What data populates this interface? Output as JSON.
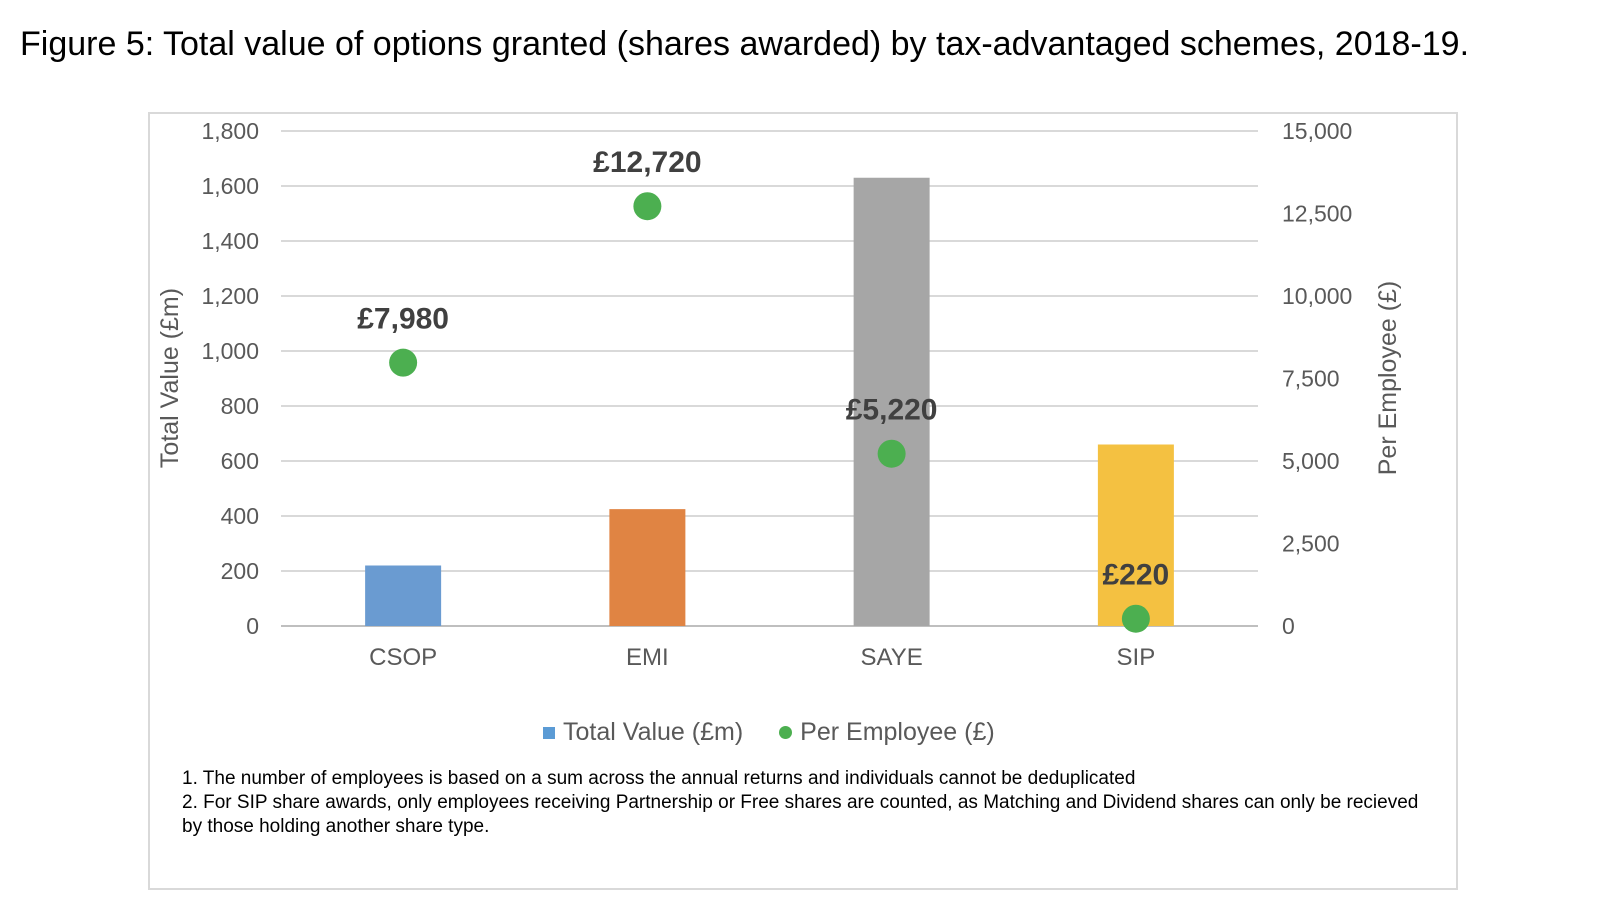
{
  "title": "Figure 5: Total value of options granted (shares awarded) by tax-advantaged schemes, 2018-19.",
  "chart_data": {
    "type": "bar",
    "categories": [
      "CSOP",
      "EMI",
      "SAYE",
      "SIP"
    ],
    "series": [
      {
        "name": "Total Value (£m)",
        "type": "bar",
        "axis": "left",
        "values": [
          220,
          425,
          1630,
          660
        ],
        "colors": [
          "#6a9bd1",
          "#e08443",
          "#a6a6a6",
          "#f4c141"
        ]
      },
      {
        "name": "Per Employee (£)",
        "type": "scatter",
        "axis": "right",
        "values": [
          7980,
          12720,
          5220,
          220
        ],
        "labels": [
          "£7,980",
          "£12,720",
          "£5,220",
          "£220"
        ],
        "color": "#4caf50"
      }
    ],
    "ylabel": "Total Value (£m)",
    "y2label": "Per Employee (£)",
    "ylim": [
      0,
      1800
    ],
    "yticks": [
      "0",
      "200",
      "400",
      "600",
      "800",
      "1,000",
      "1,200",
      "1,400",
      "1,600",
      "1,800"
    ],
    "y2lim": [
      0,
      15000
    ],
    "y2ticks": [
      "0",
      "2,500",
      "5,000",
      "7,500",
      "10,000",
      "12,500",
      "15,000"
    ],
    "grid": true,
    "legend_position": "bottom"
  },
  "legend": {
    "bar_label": "Total Value (£m)",
    "dot_label": "Per Employee (£)",
    "bar_color": "#5b9bd5",
    "dot_color": "#4caf50"
  },
  "notes": [
    "1. The number of employees is based on a sum across the annual returns and individuals cannot be deduplicated",
    "2. For SIP share awards, only employees receiving Partnership or Free shares are counted, as Matching and Dividend shares can only be recieved by those holding another share type."
  ]
}
